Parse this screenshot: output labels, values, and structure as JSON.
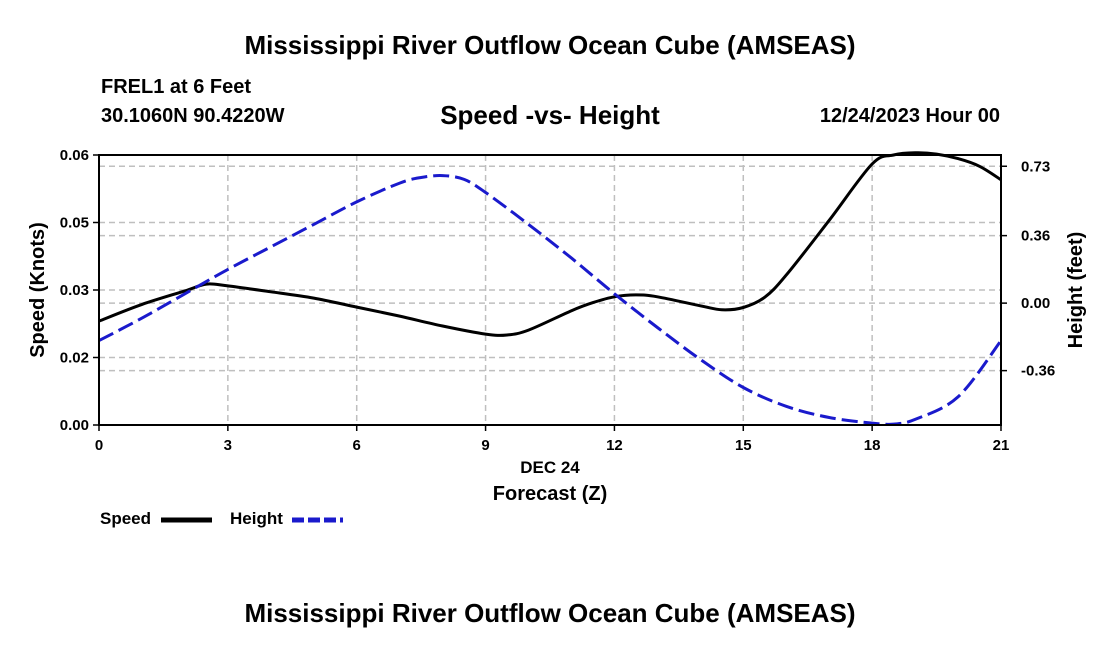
{
  "header": {
    "title": "Mississippi River Outflow Ocean Cube (AMSEAS)",
    "station": "FREL1 at 6 Feet",
    "coords": "30.1060N  90.4220W",
    "subtitle": "Speed -vs- Height",
    "stamp": "12/24/2023 Hour 00"
  },
  "footer": {
    "title": "Mississippi River Outflow Ocean Cube (AMSEAS)"
  },
  "legend": {
    "speed": "Speed",
    "height": "Height"
  },
  "colors": {
    "speed": "#000000",
    "height": "#1a1acc",
    "grid": "#bfbfbf"
  },
  "chart_data": {
    "type": "line",
    "title": "Speed -vs- Height",
    "xlabel": "Forecast (Z)",
    "xdate": "DEC 24",
    "ylabel": "Speed (Knots)",
    "y2label": "Height (feet)",
    "xlim": [
      0,
      21
    ],
    "ylim": [
      0,
      0.06
    ],
    "y2lim": [
      -0.65,
      0.79
    ],
    "x_ticks": [
      "0",
      "3",
      "6",
      "9",
      "12",
      "15",
      "18",
      "21"
    ],
    "y_ticks": [
      "0.00",
      "0.02",
      "0.03",
      "0.05",
      "0.06"
    ],
    "y_tick_values": [
      0,
      0.015,
      0.03,
      0.045,
      0.06
    ],
    "y2_ticks": [
      "-0.36",
      "0.00",
      "0.36",
      "0.73"
    ],
    "y2_tick_values": [
      -0.36,
      0,
      0.36,
      0.73
    ],
    "grid": true,
    "series": [
      {
        "name": "Speed",
        "axis": "left",
        "style": "solid",
        "x": [
          0,
          1,
          2,
          2.5,
          3,
          4,
          5,
          6,
          7,
          8,
          9,
          9.5,
          10,
          11,
          11.5,
          12,
          12.5,
          13,
          14,
          14.5,
          15,
          15.5,
          16,
          17,
          18,
          18.5,
          19,
          19.5,
          20,
          20.5,
          21
        ],
        "values": [
          0.0231,
          0.0268,
          0.0298,
          0.0313,
          0.0309,
          0.0296,
          0.0282,
          0.0262,
          0.0242,
          0.022,
          0.0202,
          0.02,
          0.0211,
          0.0254,
          0.0272,
          0.0285,
          0.0289,
          0.0285,
          0.0265,
          0.0256,
          0.0261,
          0.0284,
          0.0333,
          0.0455,
          0.058,
          0.06,
          0.0605,
          0.0602,
          0.0592,
          0.0575,
          0.0545
        ]
      },
      {
        "name": "Height",
        "axis": "right",
        "style": "dashed",
        "x": [
          0,
          1,
          2,
          3,
          4,
          5,
          6,
          7,
          7.5,
          8,
          8.5,
          9,
          10,
          11,
          12,
          13,
          14,
          15,
          16,
          17,
          18,
          18.5,
          19,
          20,
          21
        ],
        "values": [
          -0.2,
          -0.08,
          0.05,
          0.18,
          0.3,
          0.42,
          0.54,
          0.64,
          0.67,
          0.68,
          0.66,
          0.59,
          0.42,
          0.24,
          0.05,
          -0.13,
          -0.3,
          -0.45,
          -0.55,
          -0.61,
          -0.64,
          -0.645,
          -0.62,
          -0.5,
          -0.2
        ]
      }
    ]
  }
}
